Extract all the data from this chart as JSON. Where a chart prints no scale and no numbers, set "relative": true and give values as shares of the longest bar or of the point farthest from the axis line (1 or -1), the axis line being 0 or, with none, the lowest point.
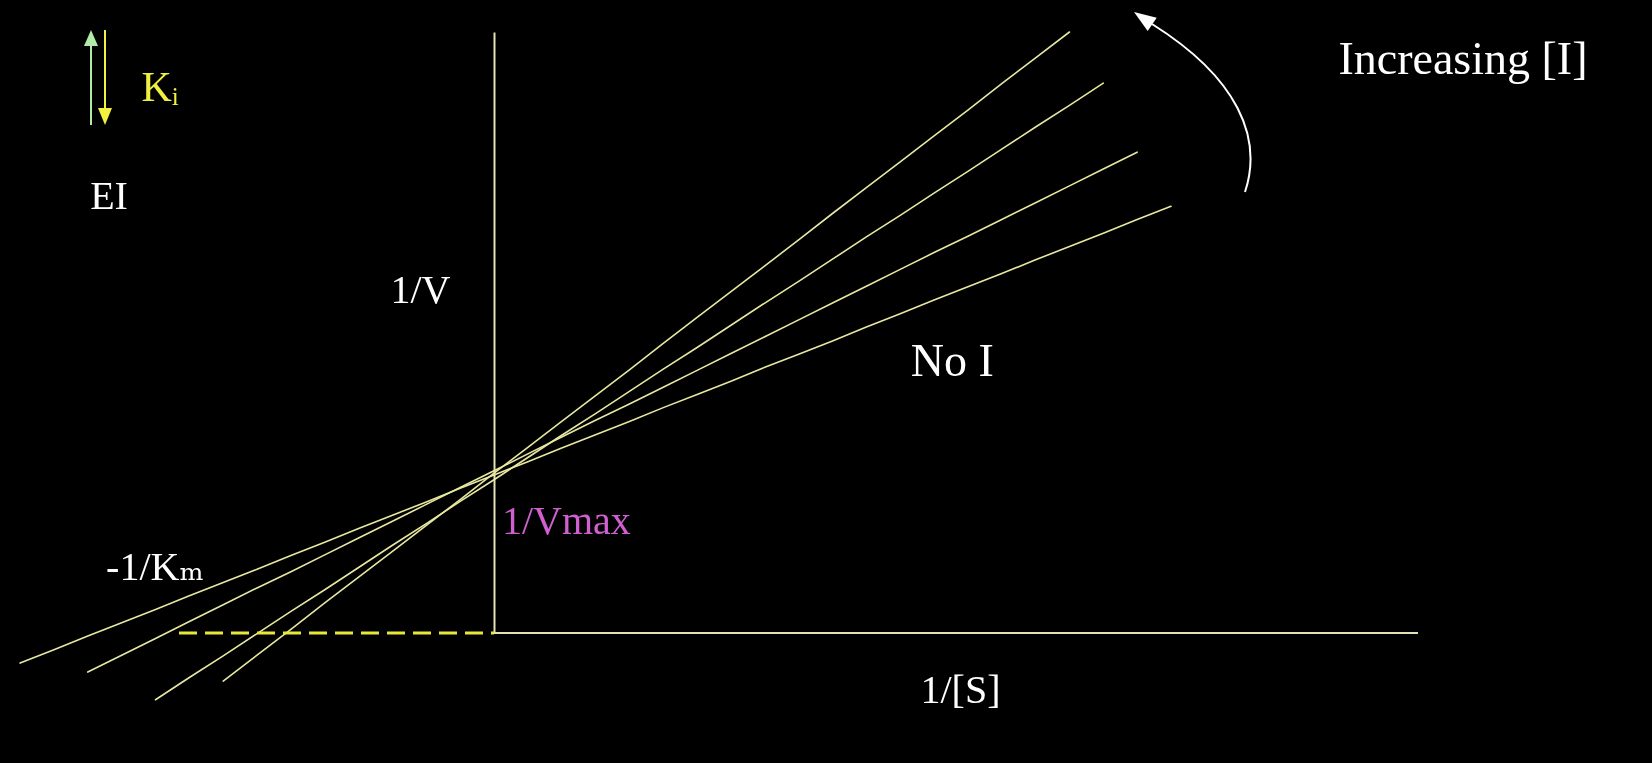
{
  "chart_data": {
    "type": "line",
    "relative": true,
    "xlabel": "1/[S]",
    "ylabel": "1/V",
    "categories": [
      null,
      null,
      null,
      null,
      null,
      null,
      null,
      null,
      null,
      null,
      null,
      null,
      null,
      null,
      null,
      null,
      null,
      null,
      null,
      null,
      null,
      null,
      null,
      null,
      null,
      null,
      null,
      null,
      null,
      null,
      null,
      null,
      null,
      null,
      null
    ],
    "series": [
      {
        "name": "No I",
        "color": "#e8e8a0",
        "values": [
          -0.05,
          -0.028,
          -0.005,
          0.017,
          0.039,
          0.062,
          0.084,
          0.106,
          0.129,
          0.151,
          0.174,
          0.196,
          0.218,
          0.241,
          0.263,
          0.285,
          0.308,
          0.33,
          0.352,
          0.375,
          0.397,
          0.419,
          0.442,
          0.464,
          0.486,
          0.509,
          0.531,
          0.554,
          0.576,
          0.598,
          0.621,
          0.643,
          0.665,
          0.688,
          0.71
        ]
      },
      {
        "color": "#e8e8a0",
        "values": [
          null,
          null,
          -0.065,
          -0.037,
          -0.009,
          0.019,
          0.047,
          0.075,
          0.102,
          0.13,
          0.158,
          0.186,
          0.214,
          0.242,
          0.27,
          0.298,
          0.326,
          0.354,
          0.381,
          0.409,
          0.437,
          0.465,
          0.493,
          0.521,
          0.549,
          0.577,
          0.605,
          0.633,
          0.66,
          0.688,
          0.716,
          0.744,
          0.772,
          0.8,
          null
        ]
      },
      {
        "color": "#e8e8a0",
        "values": [
          null,
          null,
          null,
          null,
          -0.111,
          -0.074,
          -0.038,
          -0.001,
          0.036,
          0.072,
          0.109,
          0.146,
          0.182,
          0.219,
          0.255,
          0.292,
          0.329,
          0.365,
          0.402,
          0.439,
          0.475,
          0.512,
          0.549,
          0.585,
          0.622,
          0.659,
          0.695,
          0.732,
          0.768,
          0.805,
          0.842,
          0.878,
          0.915,
          null,
          null
        ]
      },
      {
        "color": "#e8e8a0",
        "values": [
          null,
          null,
          null,
          null,
          null,
          null,
          -0.08,
          -0.037,
          0.006,
          0.05,
          0.093,
          0.136,
          0.179,
          0.222,
          0.266,
          0.309,
          0.352,
          0.395,
          0.438,
          0.482,
          0.525,
          0.568,
          0.611,
          0.654,
          0.698,
          0.741,
          0.784,
          0.827,
          0.87,
          0.914,
          0.957,
          1.0,
          null,
          null,
          null
        ]
      }
    ],
    "ref_lines": [
      {
        "axis": "y",
        "value": 0,
        "color": "#e2e2b6"
      }
    ],
    "annotations": [
      "Kᵢ",
      "EI",
      "Increasing [I]",
      "-1/Kₘ",
      "1/Vmax"
    ]
  }
}
